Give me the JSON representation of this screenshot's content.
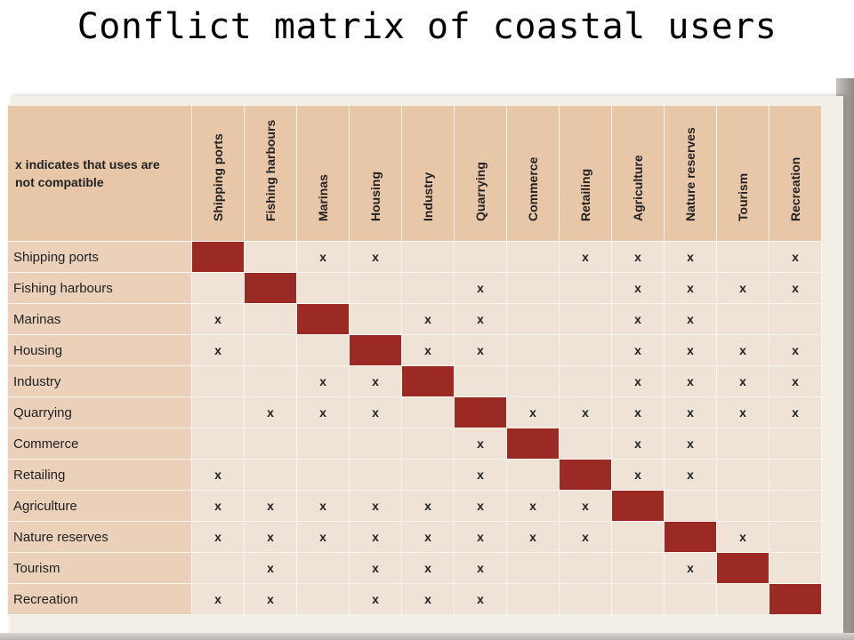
{
  "title": "Conflict matrix of coastal users",
  "legend": "x indicates that uses are\nnot compatible",
  "uses": [
    "Shipping ports",
    "Fishing harbours",
    "Marinas",
    "Housing",
    "Industry",
    "Quarrying",
    "Commerce",
    "Retailing",
    "Agriculture",
    "Nature reserves",
    "Tourism",
    "Recreation"
  ],
  "mark": "x",
  "colors": {
    "header": "#e8c6a8",
    "row_label": "#ebd0ba",
    "cell": "#efe3d8",
    "diagonal": "#9b2a24"
  },
  "matrix": [
    [
      "",
      "",
      "x",
      "x",
      "",
      "",
      "",
      "x",
      "x",
      "x",
      "",
      "x"
    ],
    [
      "",
      "",
      "",
      "",
      "",
      "x",
      "",
      "",
      "x",
      "x",
      "x",
      "x"
    ],
    [
      "x",
      "",
      "",
      "",
      "x",
      "x",
      "",
      "",
      "x",
      "x",
      "",
      ""
    ],
    [
      "x",
      "",
      "",
      "",
      "x",
      "x",
      "",
      "",
      "x",
      "x",
      "x",
      "x"
    ],
    [
      "",
      "",
      "x",
      "x",
      "",
      "",
      "",
      "",
      "x",
      "x",
      "x",
      "x"
    ],
    [
      "",
      "x",
      "x",
      "x",
      "",
      "",
      "x",
      "x",
      "x",
      "x",
      "x",
      "x"
    ],
    [
      "",
      "",
      "",
      "",
      "",
      "x",
      "",
      "",
      "x",
      "x",
      "",
      ""
    ],
    [
      "x",
      "",
      "",
      "",
      "",
      "x",
      "",
      "",
      "x",
      "x",
      "",
      ""
    ],
    [
      "x",
      "x",
      "x",
      "x",
      "x",
      "x",
      "x",
      "x",
      "",
      "",
      "",
      ""
    ],
    [
      "x",
      "x",
      "x",
      "x",
      "x",
      "x",
      "x",
      "x",
      "",
      "",
      "x",
      ""
    ],
    [
      "",
      "x",
      "",
      "x",
      "x",
      "x",
      "",
      "",
      "",
      "x",
      "",
      ""
    ],
    [
      "x",
      "x",
      "",
      "x",
      "x",
      "x",
      "",
      "",
      "",
      "",
      "",
      ""
    ]
  ]
}
